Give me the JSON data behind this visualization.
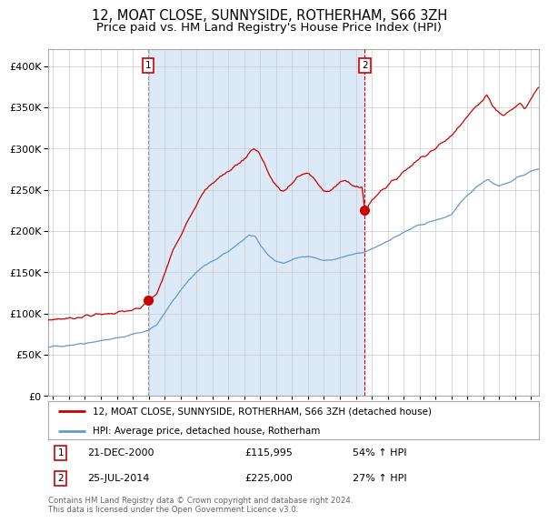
{
  "title": "12, MOAT CLOSE, SUNNYSIDE, ROTHERHAM, S66 3ZH",
  "subtitle": "Price paid vs. HM Land Registry's House Price Index (HPI)",
  "legend_red": "12, MOAT CLOSE, SUNNYSIDE, ROTHERHAM, S66 3ZH (detached house)",
  "legend_blue": "HPI: Average price, detached house, Rotherham",
  "annotation1_label": "1",
  "annotation1_date": "21-DEC-2000",
  "annotation1_price": "£115,995",
  "annotation1_hpi": "54% ↑ HPI",
  "annotation2_label": "2",
  "annotation2_date": "25-JUL-2014",
  "annotation2_price": "£225,000",
  "annotation2_hpi": "27% ↑ HPI",
  "footer": "Contains HM Land Registry data © Crown copyright and database right 2024.\nThis data is licensed under the Open Government Licence v3.0.",
  "sale1_year": 2000.97,
  "sale1_value": 115995,
  "sale2_year": 2014.56,
  "sale2_value": 225000,
  "vline1_year": 2000.97,
  "vline2_year": 2014.56,
  "shade_start": 2000.97,
  "shade_end": 2014.56,
  "ylim_min": 0,
  "ylim_max": 420000,
  "xlim_min": 1994.7,
  "xlim_max": 2025.5,
  "background_color": "#ffffff",
  "plot_bg_color": "#ffffff",
  "shade_color": "#dce9f7",
  "grid_color": "#cccccc",
  "red_line_color": "#cc0000",
  "blue_line_color": "#6699cc",
  "vline1_color": "#999999",
  "vline2_color": "#cc0000",
  "title_fontsize": 10.5,
  "subtitle_fontsize": 9.5,
  "tick_fontsize": 7.5,
  "ytick_fontsize": 8.0
}
